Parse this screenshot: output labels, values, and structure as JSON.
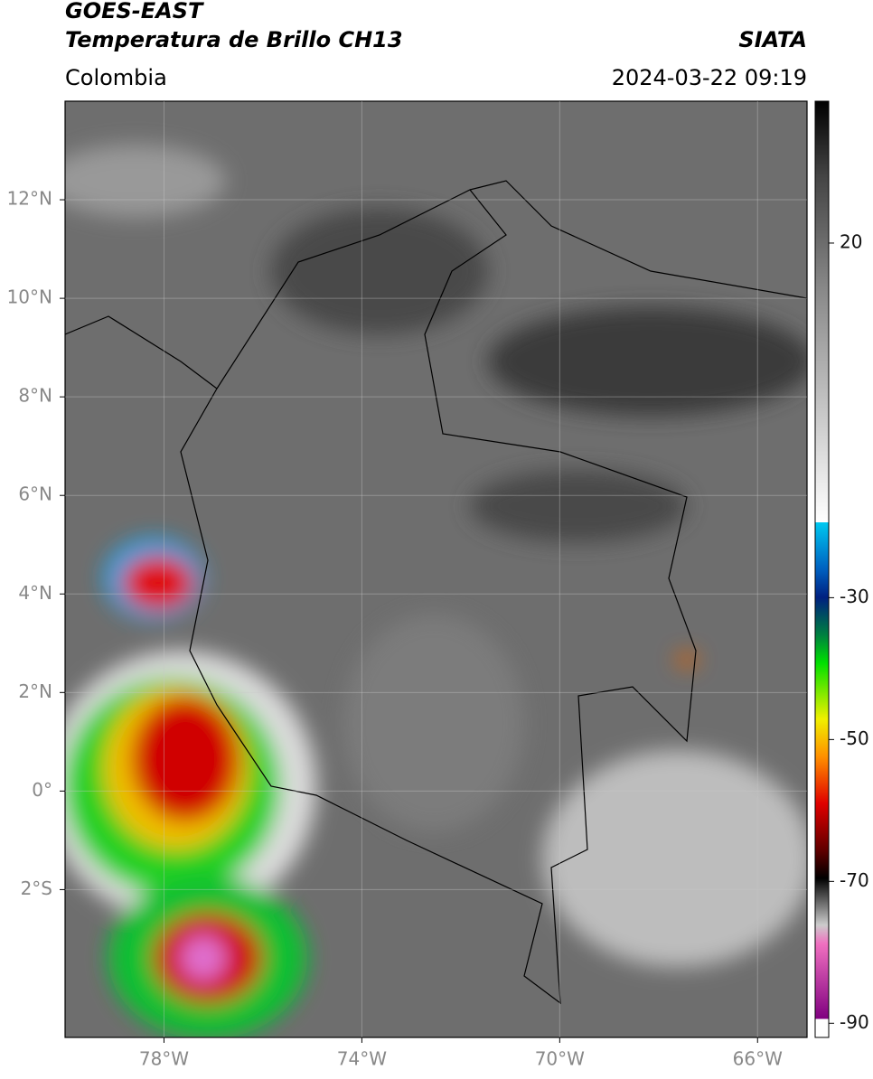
{
  "header": {
    "title_line1": "GOES-EAST",
    "title_line2": "Temperatura de Brillo CH13",
    "source": "SIATA",
    "region": "Colombia",
    "timestamp": "2024-03-22 09:19"
  },
  "map": {
    "xlim": [
      -80,
      -65
    ],
    "ylim": [
      -5,
      14
    ],
    "grid": true,
    "xticks": [
      {
        "value": -78,
        "label": "78°W"
      },
      {
        "value": -74,
        "label": "74°W"
      },
      {
        "value": -70,
        "label": "70°W"
      },
      {
        "value": -66,
        "label": "66°W"
      }
    ],
    "yticks": [
      {
        "value": 12,
        "label": "12°N"
      },
      {
        "value": 10,
        "label": "10°N"
      },
      {
        "value": 8,
        "label": "8°N"
      },
      {
        "value": 6,
        "label": "6°N"
      },
      {
        "value": 4,
        "label": "4°N"
      },
      {
        "value": 2,
        "label": "2°N"
      },
      {
        "value": 0,
        "label": "0°"
      },
      {
        "value": -2,
        "label": "2°S"
      }
    ]
  },
  "colorbar": {
    "ylim": [
      -92,
      40
    ],
    "ticks": [
      20,
      -30,
      -50,
      -70,
      -90
    ]
  }
}
